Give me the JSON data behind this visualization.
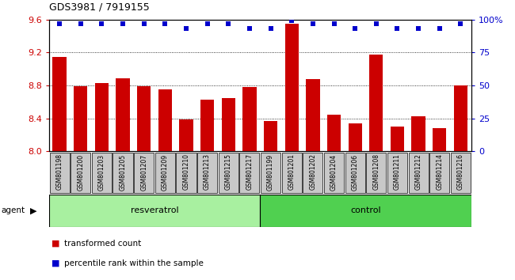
{
  "title": "GDS3981 / 7919155",
  "categories": [
    "GSM801198",
    "GSM801200",
    "GSM801203",
    "GSM801205",
    "GSM801207",
    "GSM801209",
    "GSM801210",
    "GSM801213",
    "GSM801215",
    "GSM801217",
    "GSM801199",
    "GSM801201",
    "GSM801202",
    "GSM801204",
    "GSM801206",
    "GSM801208",
    "GSM801211",
    "GSM801212",
    "GSM801214",
    "GSM801216"
  ],
  "bar_values": [
    9.15,
    8.79,
    8.83,
    8.89,
    8.79,
    8.75,
    8.39,
    8.63,
    8.65,
    8.78,
    8.37,
    9.55,
    8.88,
    8.44,
    8.34,
    9.17,
    8.3,
    8.42,
    8.28,
    8.8
  ],
  "percentile_values": [
    97,
    97,
    97,
    97,
    97,
    97,
    93,
    97,
    97,
    93,
    93,
    99,
    97,
    97,
    93,
    97,
    93,
    93,
    93,
    97
  ],
  "bar_color": "#cc0000",
  "percentile_color": "#0000cc",
  "ylim_left": [
    8.0,
    9.6
  ],
  "ylim_right": [
    0,
    100
  ],
  "yticks_left": [
    8.0,
    8.4,
    8.8,
    9.2,
    9.6
  ],
  "yticks_right": [
    0,
    25,
    50,
    75,
    100
  ],
  "ytick_labels_right": [
    "0",
    "25",
    "50",
    "75",
    "100%"
  ],
  "group1_label": "resveratrol",
  "group2_label": "control",
  "group1_count": 10,
  "group2_count": 10,
  "agent_label": "agent",
  "legend1": "transformed count",
  "legend2": "percentile rank within the sample",
  "bar_color_hex": "#cc0000",
  "pct_color_hex": "#0000cc",
  "group1_color": "#a8f0a0",
  "group2_color": "#50d050",
  "gray_box_color": "#c8c8c8"
}
